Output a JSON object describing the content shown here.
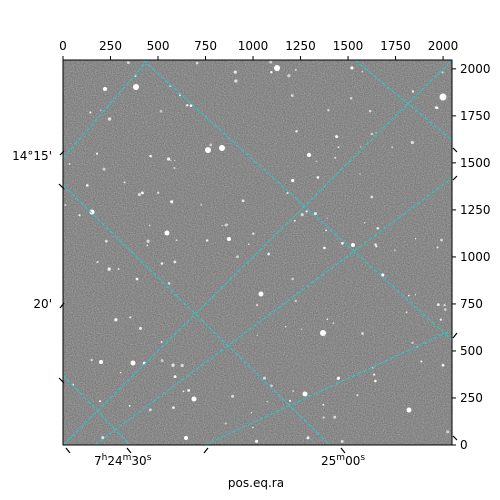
{
  "pixel_axes": {
    "x_ticks": [
      "0",
      "250",
      "500",
      "750",
      "1000",
      "1250",
      "1500",
      "1750",
      "2000"
    ],
    "y_ticks": [
      "0",
      "250",
      "500",
      "750",
      "1000",
      "1250",
      "1500",
      "1750",
      "2000"
    ],
    "x_tick_values": [
      0,
      250,
      500,
      750,
      1000,
      1250,
      1500,
      1750,
      2000
    ],
    "y_tick_values": [
      0,
      250,
      500,
      750,
      1000,
      1250,
      1500,
      1750,
      2000
    ],
    "range": [
      0,
      2047
    ]
  },
  "world_axes": {
    "ra_label": "pos.eq.ra",
    "ra_ticks": [
      {
        "h": "7",
        "m": "24",
        "s": "30",
        "text": "7h24m30s"
      },
      {
        "m": "25",
        "s": "00",
        "text": "25m00s"
      }
    ],
    "dec_ticks": [
      "14°15'",
      "20'"
    ]
  },
  "image": {
    "description_colors": {
      "background": "#6b6b6b",
      "stars": "#ffffff",
      "grid": "#1fd0d0"
    }
  },
  "chart_data": {
    "type": "image",
    "x_range": [
      0,
      2047
    ],
    "y_range": [
      0,
      2047
    ],
    "xticks": [
      0,
      250,
      500,
      750,
      1000,
      1250,
      1500,
      1750,
      2000
    ],
    "yticks": [
      0,
      250,
      500,
      750,
      1000,
      1250,
      1500,
      1750,
      2000
    ],
    "xlabel": "pos.eq.ra",
    "ra_tick_labels": [
      "7h24m30s",
      "25m00s"
    ],
    "dec_tick_labels": [
      "14°15'",
      "20'"
    ],
    "grid": true
  }
}
